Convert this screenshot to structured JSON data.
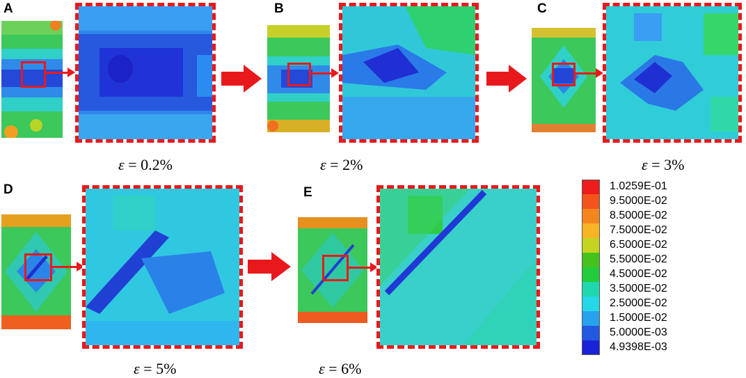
{
  "panels": [
    {
      "letter": "A",
      "strain_var": "ε",
      "strain_rest": " = 0.2%"
    },
    {
      "letter": "B",
      "strain_var": "ε",
      "strain_rest": " = 2%"
    },
    {
      "letter": "C",
      "strain_var": "ε",
      "strain_rest": " = 3%"
    },
    {
      "letter": "D",
      "strain_var": "ε",
      "strain_rest": " = 5%"
    },
    {
      "letter": "E",
      "strain_var": "ε",
      "strain_rest": " = 6%"
    }
  ],
  "legend": {
    "entries": [
      {
        "label": "1.0259E-01",
        "color": "#ee1c1c"
      },
      {
        "label": "9.5000E-02",
        "color": "#f2541c"
      },
      {
        "label": "8.5000E-02",
        "color": "#f5861e"
      },
      {
        "label": "7.5000E-02",
        "color": "#f7b526"
      },
      {
        "label": "6.5000E-02",
        "color": "#c4d420"
      },
      {
        "label": "5.5000E-02",
        "color": "#46c21e"
      },
      {
        "label": "4.5000E-02",
        "color": "#22cc3c"
      },
      {
        "label": "3.5000E-02",
        "color": "#20d8b0"
      },
      {
        "label": "2.5000E-02",
        "color": "#25d8e8"
      },
      {
        "label": "1.5000E-02",
        "color": "#27a3ee"
      },
      {
        "label": "5.0000E-03",
        "color": "#2259e0"
      },
      {
        "label": "4.9398E-03",
        "color": "#1a22d8"
      }
    ]
  }
}
